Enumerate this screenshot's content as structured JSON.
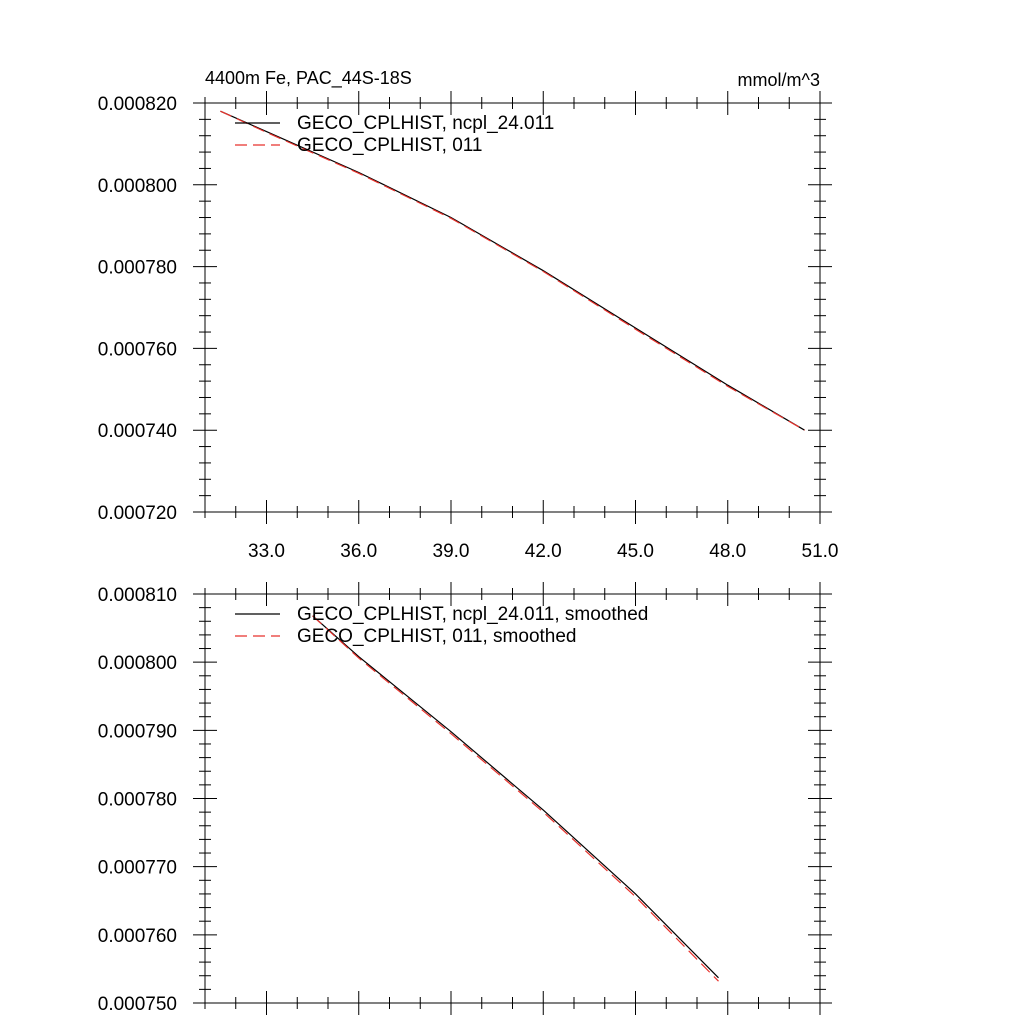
{
  "figure": {
    "left_title": "4400m Fe, PAC_44S-18S",
    "right_title": "mmol/m^3"
  },
  "chart_data": [
    {
      "type": "line",
      "xlim": [
        31.0,
        51.0
      ],
      "ylim": [
        0.00072,
        0.00082
      ],
      "x_ticks": [
        33.0,
        36.0,
        39.0,
        42.0,
        45.0,
        48.0,
        51.0
      ],
      "x_tick_labels": [
        "33.0",
        "36.0",
        "39.0",
        "42.0",
        "45.0",
        "48.0",
        "51.0"
      ],
      "y_ticks": [
        0.00072,
        0.00074,
        0.00076,
        0.00078,
        0.0008,
        0.00082
      ],
      "y_tick_labels": [
        "0.000720",
        "0.000740",
        "0.000760",
        "0.000780",
        "0.000800",
        "0.000820"
      ],
      "grid": false,
      "legend_position": "top-left",
      "series": [
        {
          "name": "GECO_CPLHIST, ncpl_24.011",
          "color": "#000000",
          "dash": "solid",
          "x": [
            31.5,
            33.0,
            36.0,
            39.0,
            42.0,
            45.0,
            48.0,
            50.5
          ],
          "y": [
            0.000818,
            0.000813,
            0.000803,
            0.000792,
            0.000779,
            0.000765,
            0.000751,
            0.00074
          ]
        },
        {
          "name": "GECO_CPLHIST, 011",
          "color": "#e8322c",
          "dash": "dashed",
          "x": [
            31.5,
            33.0,
            36.0,
            39.0,
            42.0,
            45.0,
            48.0,
            50.5
          ],
          "y": [
            0.000818,
            0.0008128,
            0.0008028,
            0.0007918,
            0.0007788,
            0.0007647,
            0.0007507,
            0.00074
          ]
        }
      ]
    },
    {
      "type": "line",
      "xlim": [
        31.0,
        51.0
      ],
      "ylim": [
        0.00075,
        0.00081
      ],
      "x_ticks": [
        33.0,
        36.0,
        39.0,
        42.0,
        45.0,
        48.0,
        51.0
      ],
      "x_tick_labels": [],
      "y_ticks": [
        0.00075,
        0.00076,
        0.00077,
        0.00078,
        0.00079,
        0.0008,
        0.00081
      ],
      "y_tick_labels": [
        "0.000750",
        "0.000760",
        "0.000770",
        "0.000780",
        "0.000790",
        "0.000800",
        "0.000810"
      ],
      "grid": false,
      "legend_position": "top-left",
      "series": [
        {
          "name": "GECO_CPLHIST, ncpl_24.011, smoothed",
          "color": "#000000",
          "dash": "solid",
          "x": [
            34.5,
            36.0,
            39.0,
            42.0,
            45.0,
            47.7
          ],
          "y": [
            0.0008068,
            0.0008008,
            0.0007898,
            0.0007783,
            0.000766,
            0.0007537
          ]
        },
        {
          "name": "GECO_CPLHIST, 011, smoothed",
          "color": "#e8322c",
          "dash": "dashed",
          "x": [
            34.5,
            36.0,
            39.0,
            42.0,
            45.0,
            47.7
          ],
          "y": [
            0.0008068,
            0.0008006,
            0.0007895,
            0.000778,
            0.0007656,
            0.0007532
          ]
        }
      ]
    }
  ]
}
